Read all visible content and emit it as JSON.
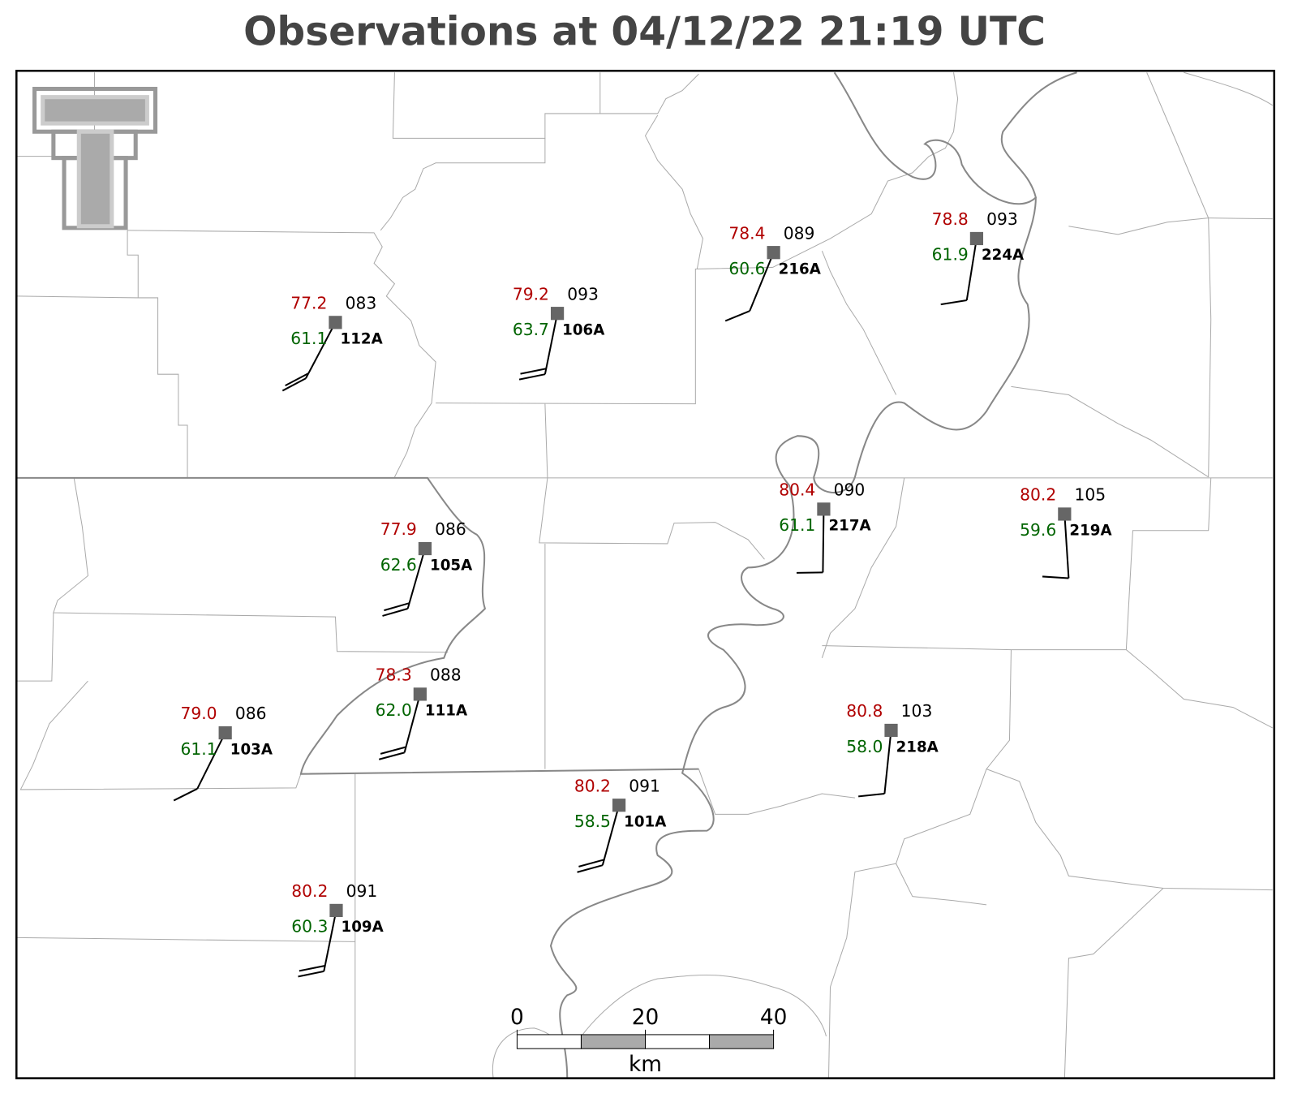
{
  "title": "Observations at 04/12/22 21:19 UTC",
  "stations": [
    {
      "temperature": "77.2",
      "pressure": "083",
      "dewpoint": "61.1",
      "id": "112A"
    },
    {
      "temperature": "79.2",
      "pressure": "093",
      "dewpoint": "63.7",
      "id": "106A"
    },
    {
      "temperature": "78.4",
      "pressure": "089",
      "dewpoint": "60.6",
      "id": "216A"
    },
    {
      "temperature": "78.8",
      "pressure": "093",
      "dewpoint": "61.9",
      "id": "224A"
    },
    {
      "temperature": "77.9",
      "pressure": "086",
      "dewpoint": "62.6",
      "id": "105A"
    },
    {
      "temperature": "80.4",
      "pressure": "090",
      "dewpoint": "61.1",
      "id": "217A"
    },
    {
      "temperature": "80.2",
      "pressure": "105",
      "dewpoint": "59.6",
      "id": "219A"
    },
    {
      "temperature": "78.3",
      "pressure": "088",
      "dewpoint": "62.0",
      "id": "111A"
    },
    {
      "temperature": "79.0",
      "pressure": "086",
      "dewpoint": "61.1",
      "id": "103A"
    },
    {
      "temperature": "80.8",
      "pressure": "103",
      "dewpoint": "58.0",
      "id": "218A"
    },
    {
      "temperature": "80.2",
      "pressure": "091",
      "dewpoint": "58.5",
      "id": "101A"
    },
    {
      "temperature": "80.2",
      "pressure": "091",
      "dewpoint": "60.3",
      "id": "109A"
    }
  ],
  "scale_bar": {
    "ticks": [
      "0",
      "20",
      "40"
    ],
    "unit": "km"
  }
}
